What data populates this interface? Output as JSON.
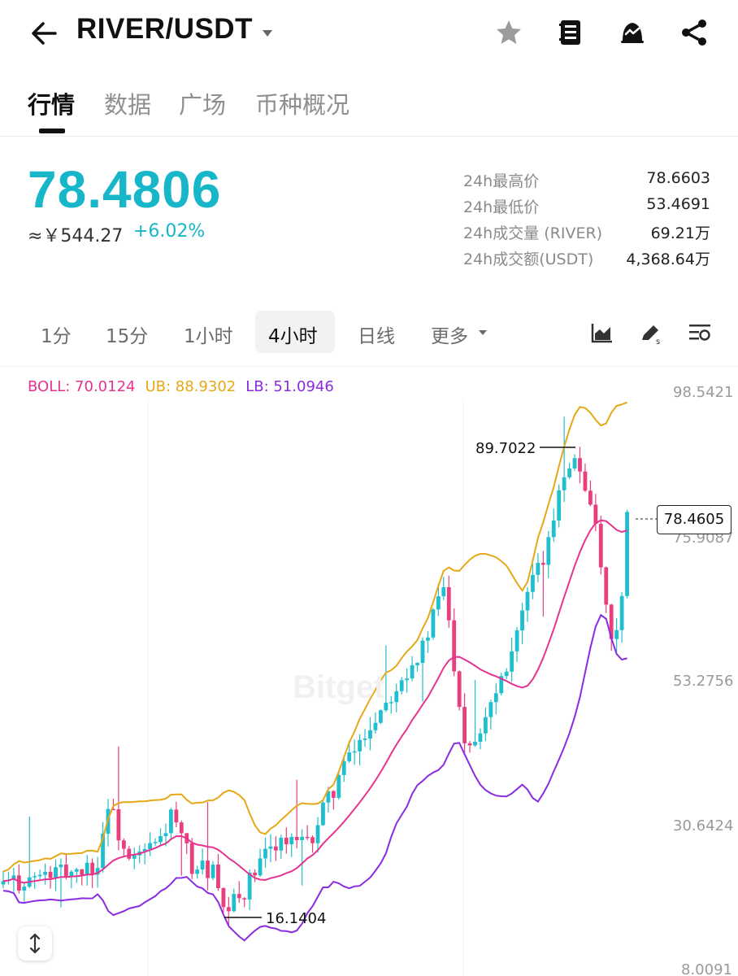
{
  "header": {
    "pair": "RIVER/USDT",
    "icons": [
      "back-arrow-icon",
      "caret-down-icon",
      "star-icon",
      "notebook-icon",
      "alert-bell-icon",
      "share-icon"
    ]
  },
  "tabs": [
    {
      "label": "行情",
      "active": true
    },
    {
      "label": "数据",
      "active": false
    },
    {
      "label": "广场",
      "active": false
    },
    {
      "label": "币种概况",
      "active": false
    }
  ],
  "ticker": {
    "price": "78.4806",
    "cny": "≈￥544.27",
    "change": "+6.02%",
    "accent_color": "#17b6c8"
  },
  "stats": [
    {
      "label": "24h最高价",
      "value": "78.6603"
    },
    {
      "label": "24h最低价",
      "value": "53.4691"
    },
    {
      "label": "24h成交量 (RIVER)",
      "value": "69.21万"
    },
    {
      "label": "24h成交额(USDT)",
      "value": "4,368.64万"
    }
  ],
  "intervals": [
    {
      "label": "1分",
      "active": false
    },
    {
      "label": "15分",
      "active": false
    },
    {
      "label": "1小时",
      "active": false
    },
    {
      "label": "4小时",
      "active": true
    },
    {
      "label": "日线",
      "active": false
    },
    {
      "label": "更多",
      "active": false
    }
  ],
  "tools": [
    "chart-type-icon",
    "draw-tool-icon",
    "indicator-settings-icon"
  ],
  "indicators": {
    "boll": "BOLL: 70.0124",
    "ub": "UB: 88.9302",
    "lb": "LB: 51.0946"
  },
  "chart_data": {
    "type": "candlestick",
    "y_axis_labels": [
      "98.5421",
      "75.9087",
      "53.2756",
      "30.6424",
      "8.0091"
    ],
    "ylim": [
      8.0091,
      98.5421
    ],
    "current_price": "78.4605",
    "max_marker": "89.7022",
    "min_marker": "16.1404",
    "watermark": "Bitget",
    "up_color": "#1fbfd0",
    "down_color": "#ea3e7f",
    "ub_color": "#e6a817",
    "mid_color": "#e6338f",
    "lb_color": "#8a2be2"
  }
}
